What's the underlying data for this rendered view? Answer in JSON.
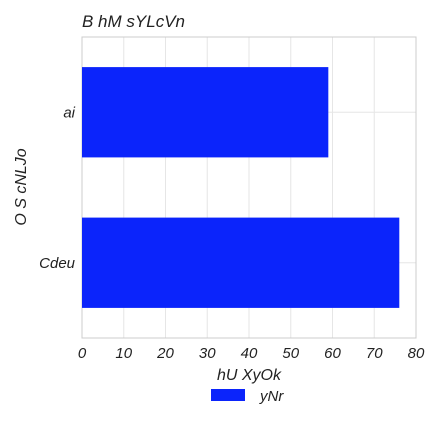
{
  "chart_data": {
    "type": "bar",
    "orientation": "horizontal",
    "title": "B hM sYLcVn",
    "xlabel": "hU  XyOk",
    "ylabel": "O S cNLJo",
    "categories": [
      "ai",
      "Cdeu"
    ],
    "series": [
      {
        "name": "yNr",
        "values": [
          59,
          76
        ]
      }
    ],
    "xlim": [
      0,
      80
    ],
    "xticks": [
      0,
      10,
      20,
      30,
      40,
      50,
      60,
      70,
      80
    ],
    "grid": true,
    "legend_position": "bottom-center",
    "colors": {
      "bar": "#0b24fb",
      "grid": "#e6e6e6",
      "frame": "#cccccc"
    }
  }
}
